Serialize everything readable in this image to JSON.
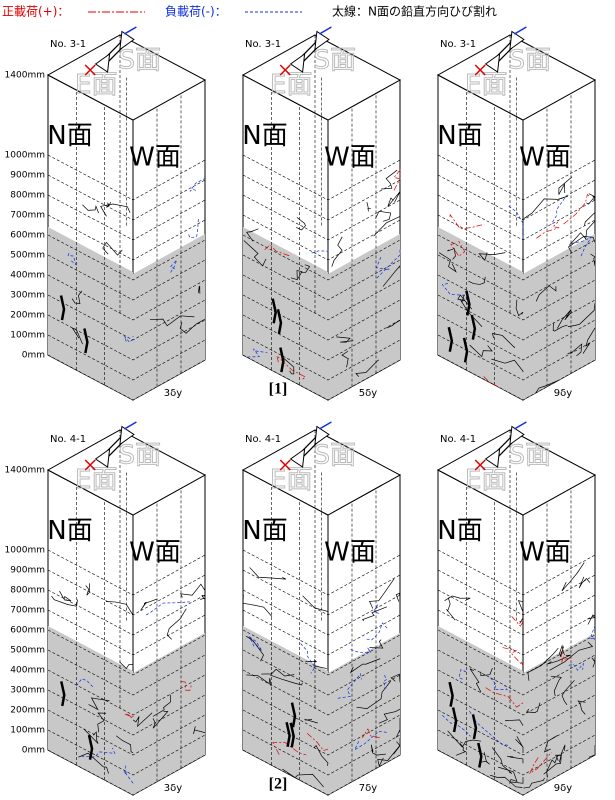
{
  "legend": {
    "positive": "正載荷(+)：",
    "negative": "負載荷(-)：",
    "thick": "太線：N面の鉛直方向ひび割れ"
  },
  "height_labels": [
    "1400mm",
    "1000mm",
    "900mm",
    "800mm",
    "700mm",
    "600mm",
    "500mm",
    "400mm",
    "300mm",
    "200mm",
    "100mm",
    "0mm"
  ],
  "faces": {
    "n": "N面",
    "w": "W面",
    "e": "E面",
    "s": "S面"
  },
  "rows": [
    {
      "label": "[1]",
      "specimens": [
        {
          "name": "No. 3-1",
          "step": "3δy"
        },
        {
          "name": "No. 3-1",
          "step": "5δy"
        },
        {
          "name": "No. 3-1",
          "step": "9δy"
        }
      ]
    },
    {
      "label": "[2]",
      "specimens": [
        {
          "name": "No. 4-1",
          "step": "3δy"
        },
        {
          "name": "No. 4-1",
          "step": "7δy"
        },
        {
          "name": "No. 4-1",
          "step": "9δy"
        }
      ]
    }
  ]
}
